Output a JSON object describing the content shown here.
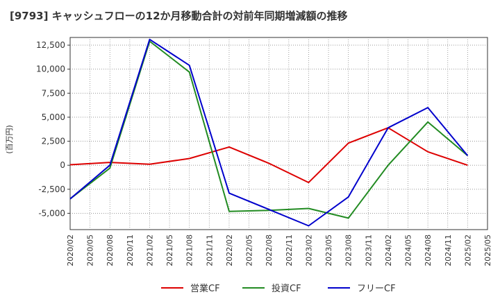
{
  "chart_data": {
    "type": "line",
    "title": "[9793]  キャッシュフローの12か月移動合計の対前年同期増減額の推移",
    "ylabel": "(百万円)",
    "xlabel": "",
    "ylim": [
      -6700,
      13300
    ],
    "yticks": [
      12500,
      10000,
      7500,
      5000,
      2500,
      0,
      -2500,
      -5000
    ],
    "ytick_labels": [
      "12,500",
      "10,000",
      "7,500",
      "5,000",
      "2,500",
      "0",
      "-2,500",
      "-5,000"
    ],
    "x_categories": [
      "2020/02",
      "2020/05",
      "2020/08",
      "2020/11",
      "2021/02",
      "2021/05",
      "2021/08",
      "2021/11",
      "2022/02",
      "2022/05",
      "2022/08",
      "2022/11",
      "2023/02",
      "2023/05",
      "2023/08",
      "2023/11",
      "2024/02",
      "2024/05",
      "2024/08",
      "2024/11",
      "2025/02",
      "2025/05"
    ],
    "grid": true,
    "legend_position": "bottom",
    "series": [
      {
        "name": "営業CF",
        "color": "#dd0000",
        "points": [
          [
            "2020/02",
            50
          ],
          [
            "2020/08",
            300
          ],
          [
            "2021/02",
            100
          ],
          [
            "2021/08",
            700
          ],
          [
            "2022/02",
            1900
          ],
          [
            "2022/08",
            200
          ],
          [
            "2023/02",
            -1800
          ],
          [
            "2023/08",
            2300
          ],
          [
            "2024/02",
            3900
          ],
          [
            "2024/08",
            1400
          ],
          [
            "2025/02",
            0
          ]
        ]
      },
      {
        "name": "投資CF",
        "color": "#228b22",
        "points": [
          [
            "2020/02",
            -3500
          ],
          [
            "2020/08",
            -300
          ],
          [
            "2021/02",
            12900
          ],
          [
            "2021/08",
            9700
          ],
          [
            "2022/02",
            -4800
          ],
          [
            "2022/08",
            -4700
          ],
          [
            "2023/02",
            -4500
          ],
          [
            "2023/08",
            -5500
          ],
          [
            "2024/02",
            0
          ],
          [
            "2024/08",
            4500
          ],
          [
            "2025/02",
            1000
          ]
        ]
      },
      {
        "name": "フリーCF",
        "color": "#0000cc",
        "points": [
          [
            "2020/02",
            -3500
          ],
          [
            "2020/08",
            0
          ],
          [
            "2021/02",
            13100
          ],
          [
            "2021/08",
            10400
          ],
          [
            "2022/02",
            -2900
          ],
          [
            "2022/08",
            -4600
          ],
          [
            "2023/02",
            -6300
          ],
          [
            "2023/08",
            -3300
          ],
          [
            "2024/02",
            3900
          ],
          [
            "2024/08",
            6000
          ],
          [
            "2025/02",
            1000
          ]
        ]
      }
    ]
  }
}
